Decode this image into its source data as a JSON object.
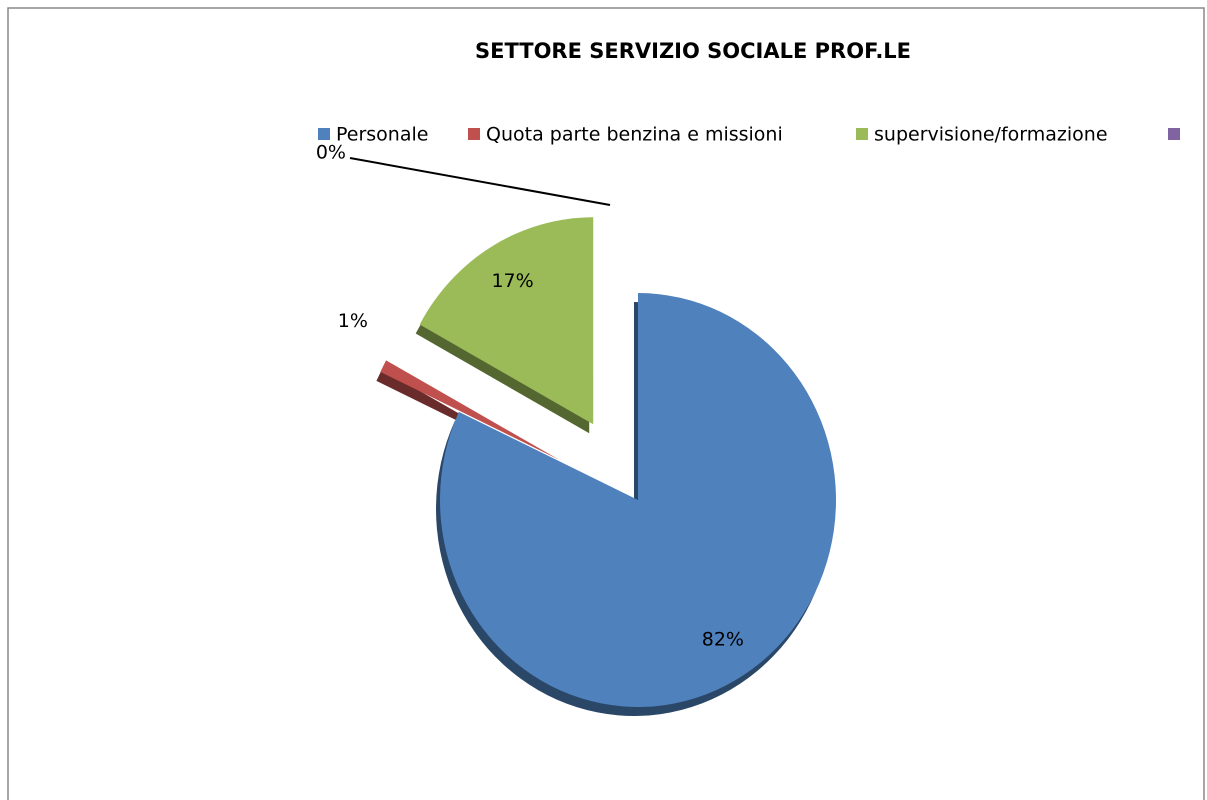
{
  "chart_data": {
    "type": "pie",
    "title": "SETTORE SERVIZIO SOCIALE PROF.LE",
    "categories": [
      "Personale",
      "Quota parte benzina e missioni",
      "supervisione/formazione",
      null
    ],
    "values": [
      82,
      1,
      17,
      0
    ],
    "value_labels": [
      "82%",
      "1%",
      "17%",
      "0%"
    ],
    "colors": [
      "#4f81bd",
      "#c0504d",
      "#9bbb59",
      "#8064a2"
    ],
    "legend": "top"
  }
}
